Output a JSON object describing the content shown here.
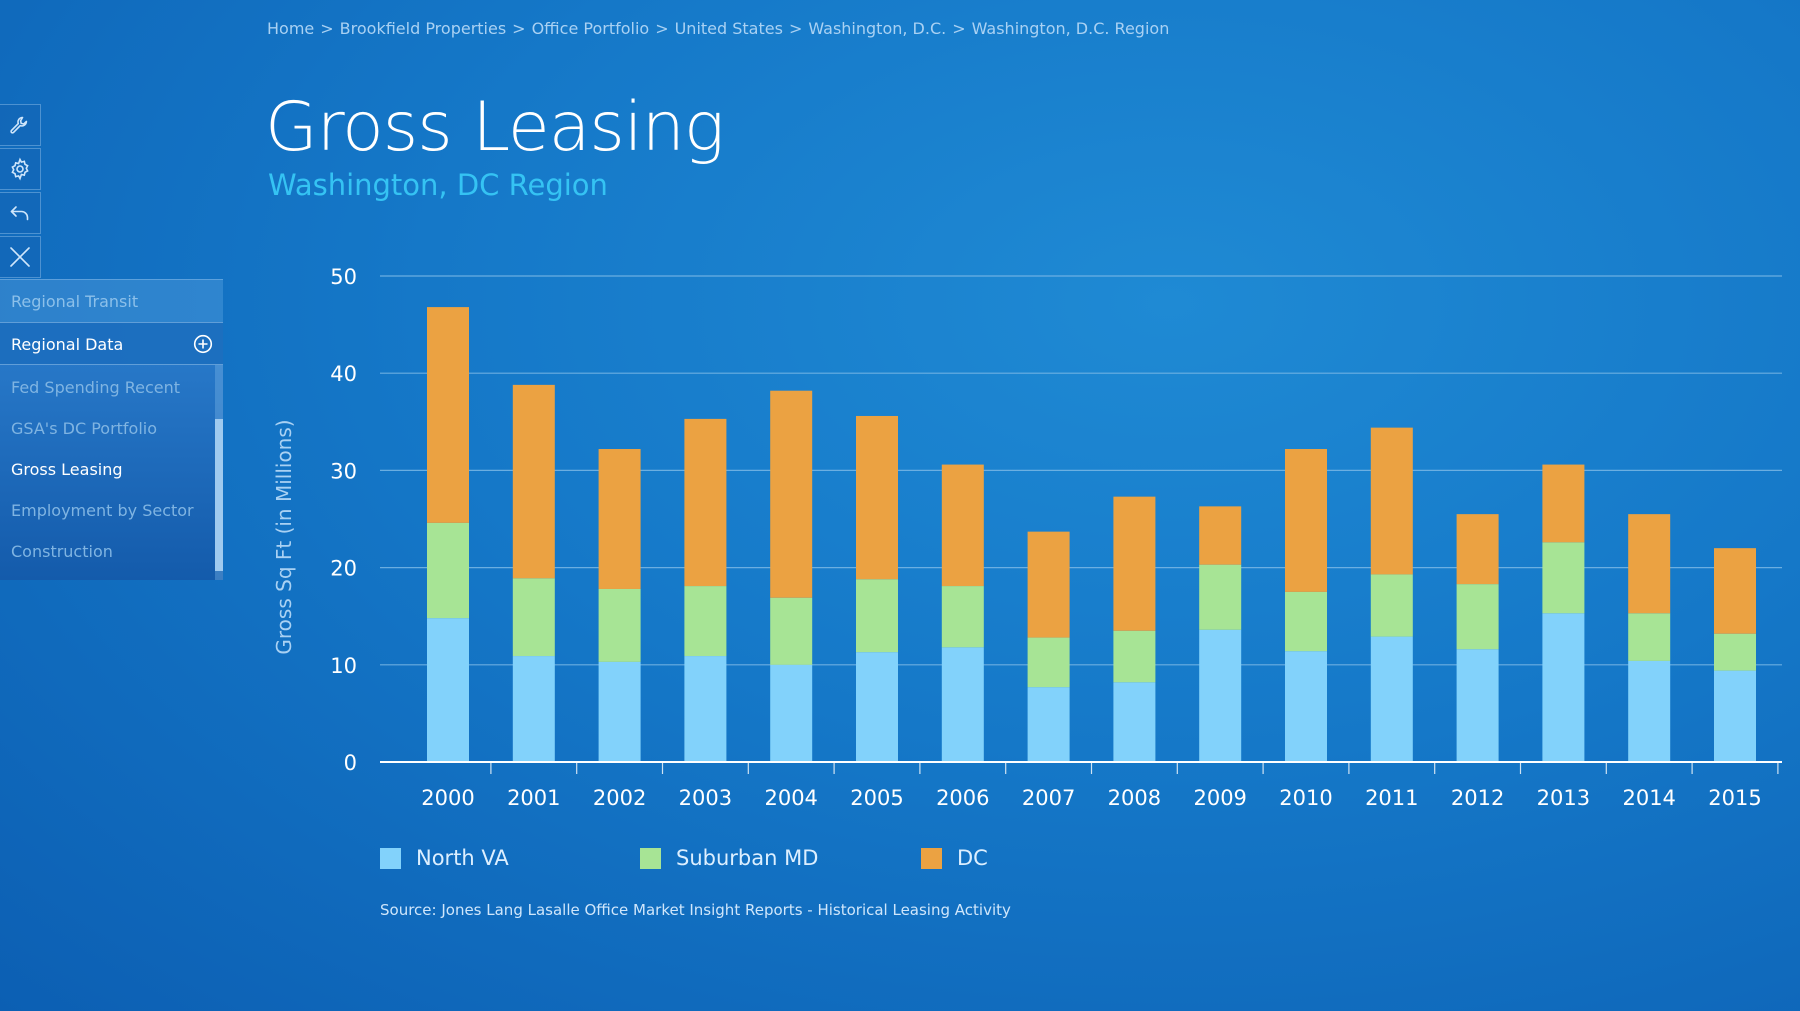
{
  "breadcrumb": [
    "Home",
    "Brookfield Properties",
    "Office Portfolio",
    "United States",
    "Washington, D.C.",
    "Washington, D.C. Region"
  ],
  "breadcrumb_separator": ">",
  "toolbar": {
    "icons": [
      "wrench-icon",
      "gear-icon",
      "undo-icon",
      "close-icon"
    ]
  },
  "menu": {
    "transit_label": "Regional Transit",
    "data_label": "Regional Data",
    "submenu": [
      "Fed Spending Recent",
      "GSA's DC Portfolio",
      "Gross Leasing",
      "Employment by Sector",
      "Construction"
    ],
    "active": "Gross Leasing"
  },
  "header": {
    "title": "Gross Leasing",
    "subtitle": "Washington, DC Region"
  },
  "source_text": "Source: Jones Lang Lasalle Office Market Insight Reports - Historical Leasing Activity",
  "colors": {
    "north_va": "#82d2fb",
    "suburban_md": "#a7e495",
    "dc": "#eba242",
    "grid": "#7ab8e6",
    "axis": "#ffffff"
  },
  "chart_data": {
    "type": "bar",
    "stacked": true,
    "title": "Gross Leasing",
    "subtitle": "Washington, DC Region",
    "xlabel": "",
    "ylabel": "Gross Sq Ft (in Millions)",
    "ylim": [
      0,
      50
    ],
    "yticks": [
      0,
      10,
      20,
      30,
      40,
      50
    ],
    "grid": true,
    "legend": "bottom-left",
    "categories": [
      "2000",
      "2001",
      "2002",
      "2003",
      "2004",
      "2005",
      "2006",
      "2007",
      "2008",
      "2009",
      "2010",
      "2011",
      "2012",
      "2013",
      "2014",
      "2015"
    ],
    "series": [
      {
        "name": "North VA",
        "color": "#82d2fb",
        "values": [
          14.8,
          10.9,
          10.3,
          10.9,
          10.0,
          11.3,
          11.8,
          7.7,
          8.2,
          13.6,
          11.4,
          12.9,
          11.6,
          15.3,
          10.4,
          9.4
        ]
      },
      {
        "name": "Suburban MD",
        "color": "#a7e495",
        "values": [
          9.8,
          8.0,
          7.5,
          7.2,
          6.9,
          7.5,
          6.3,
          5.1,
          5.3,
          6.7,
          6.1,
          6.4,
          6.7,
          7.3,
          4.9,
          3.8
        ]
      },
      {
        "name": "DC",
        "color": "#eba242",
        "values": [
          22.2,
          19.9,
          14.4,
          17.2,
          21.3,
          16.8,
          12.5,
          10.9,
          13.8,
          6.0,
          14.7,
          15.1,
          7.2,
          8.0,
          10.2,
          8.8
        ]
      }
    ]
  }
}
